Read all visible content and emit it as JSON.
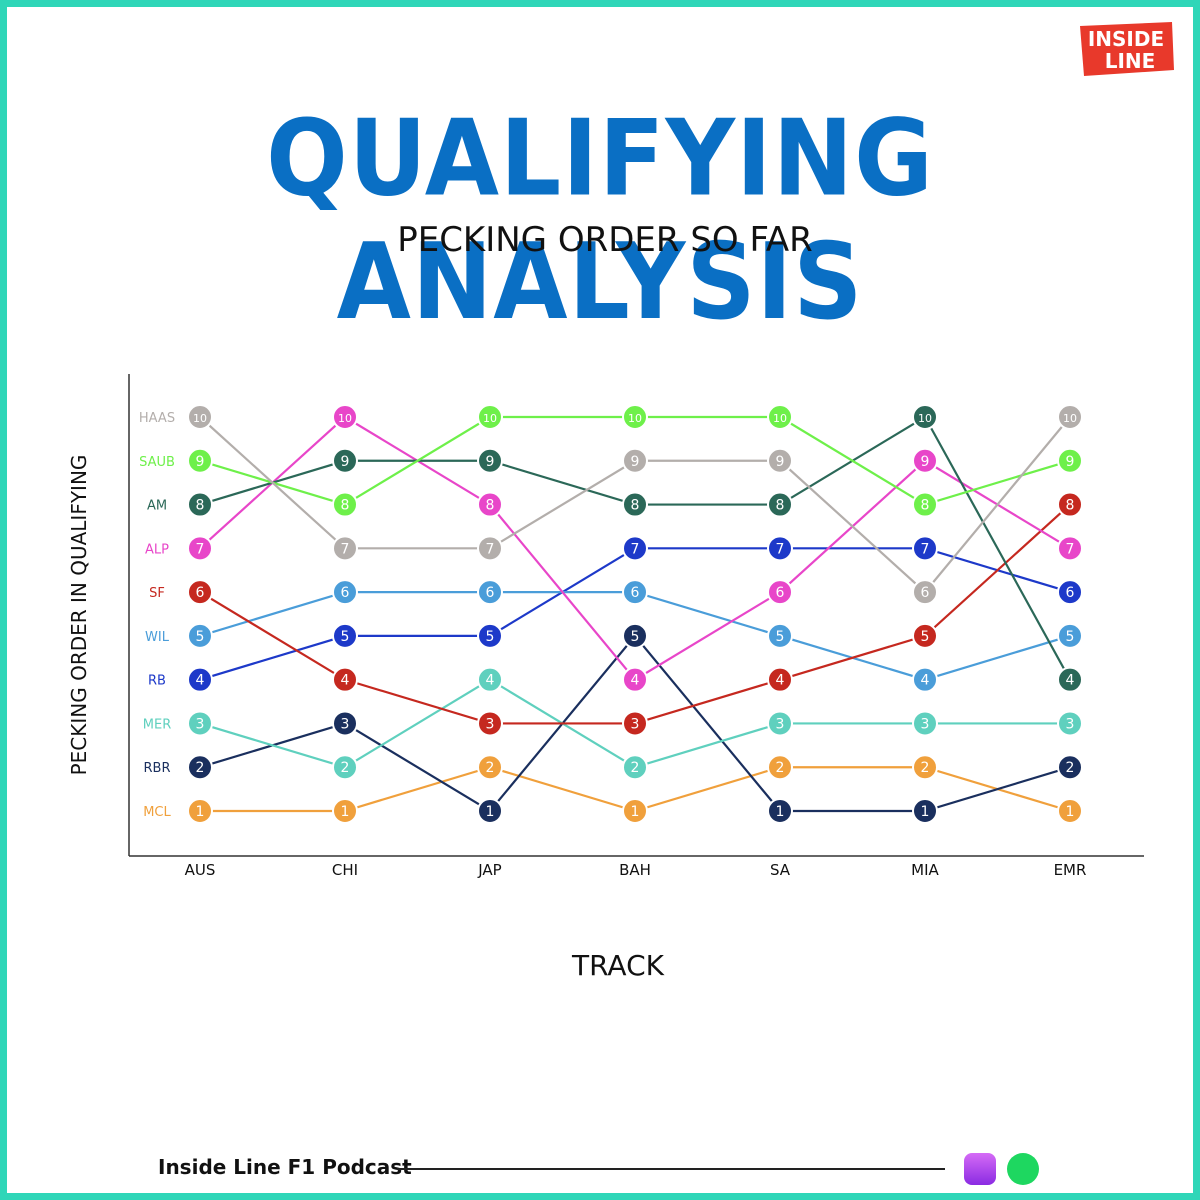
{
  "header": {
    "logo_line1": "INSIDE",
    "logo_line2": "LINE",
    "title": "QUALIFYING ANALYSIS",
    "subtitle": "PECKING ORDER SO FAR"
  },
  "footer": {
    "podcast_label": "Inside Line F1 Podcast",
    "icons": [
      "apple-podcasts-icon",
      "spotify-icon"
    ]
  },
  "colors": {
    "frame": "#2fd6b8",
    "title": "#0a6fc4"
  },
  "chart_data": {
    "type": "line",
    "xlabel": "TRACK",
    "ylabel": "PECKING ORDER IN QUALIFYING",
    "categories": [
      "AUS",
      "CHI",
      "JAP",
      "BAH",
      "SA",
      "MIA",
      "EMR"
    ],
    "ylim": [
      1,
      10
    ],
    "y_tick_labels": [
      "MCL",
      "RBR",
      "MER",
      "RB",
      "WIL",
      "SF",
      "ALP",
      "AM",
      "SAUB",
      "HAAS"
    ],
    "y_tick_colors": [
      "#f0a03c",
      "#1a2f5e",
      "#5fd0be",
      "#1d39c9",
      "#4a9dd9",
      "#c5281f",
      "#e846c9",
      "#2b6858",
      "#6ef04a",
      "#b3aeab"
    ],
    "grid": false,
    "series": [
      {
        "name": "MCL",
        "color": "#f0a03c",
        "values": [
          1,
          1,
          2,
          1,
          2,
          2,
          1
        ]
      },
      {
        "name": "RBR",
        "color": "#1a2f5e",
        "values": [
          2,
          3,
          1,
          5,
          1,
          1,
          2
        ]
      },
      {
        "name": "MER",
        "color": "#5fd0be",
        "values": [
          3,
          2,
          4,
          2,
          3,
          3,
          3
        ]
      },
      {
        "name": "RB",
        "color": "#1d39c9",
        "values": [
          4,
          5,
          5,
          7,
          7,
          7,
          6
        ]
      },
      {
        "name": "WIL",
        "color": "#4a9dd9",
        "values": [
          5,
          6,
          6,
          6,
          5,
          4,
          5
        ]
      },
      {
        "name": "SF",
        "color": "#c5281f",
        "values": [
          6,
          4,
          3,
          3,
          4,
          5,
          8
        ]
      },
      {
        "name": "ALP",
        "color": "#e846c9",
        "values": [
          7,
          10,
          8,
          4,
          6,
          9,
          7
        ]
      },
      {
        "name": "AM",
        "color": "#2b6858",
        "values": [
          8,
          9,
          9,
          8,
          8,
          10,
          4
        ]
      },
      {
        "name": "SAUB",
        "color": "#6ef04a",
        "values": [
          9,
          8,
          10,
          10,
          10,
          8,
          9
        ]
      },
      {
        "name": "HAAS",
        "color": "#b3aeab",
        "values": [
          10,
          7,
          7,
          9,
          9,
          6,
          10
        ]
      }
    ]
  }
}
